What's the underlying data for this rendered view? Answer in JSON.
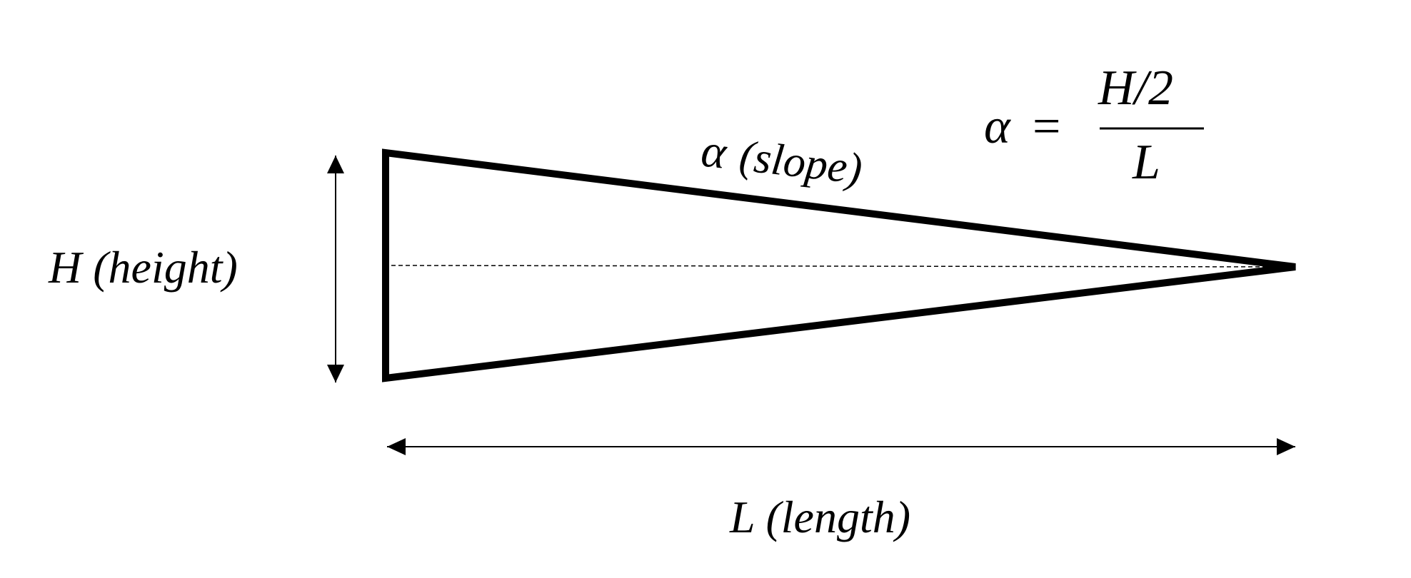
{
  "labels": {
    "height": "H (height)",
    "length": "L (length)",
    "slope_symbol": "α",
    "slope": "(slope)"
  },
  "formula": {
    "lhs": "α",
    "equals": "=",
    "numerator": "H/2",
    "denominator": "L"
  },
  "colors": {
    "stroke": "#000000",
    "background": "#ffffff"
  }
}
